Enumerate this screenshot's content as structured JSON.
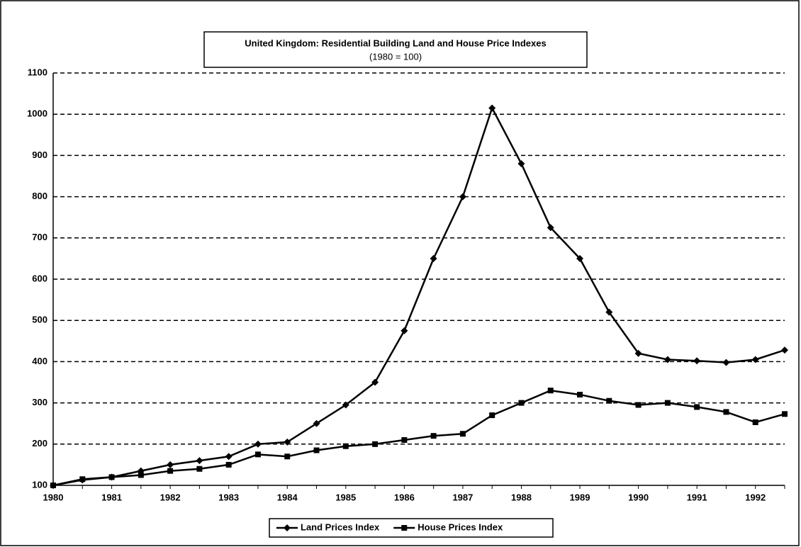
{
  "chart_data": {
    "type": "line",
    "title": "United Kingdom: Residential Building Land and House Price Indexes",
    "subtitle": "(1980 = 100)",
    "categories": [
      "1980",
      null,
      "1981",
      null,
      "1982",
      null,
      "1983",
      null,
      "1984",
      null,
      "1985",
      null,
      "1986",
      null,
      "1987",
      null,
      "1988",
      null,
      "1989",
      null,
      "1990",
      null,
      "1991",
      null,
      "1992",
      null
    ],
    "series": [
      {
        "name": "Land Prices Index",
        "color": "#000000",
        "marker": "diamond",
        "values": [
          100,
          113,
          120,
          135,
          150,
          160,
          170,
          200,
          205,
          250,
          295,
          350,
          475,
          650,
          800,
          1015,
          880,
          725,
          650,
          520,
          420,
          405,
          402,
          398,
          405,
          428
        ]
      },
      {
        "name": "House Prices Index",
        "color": "#000000",
        "marker": "square",
        "values": [
          100,
          115,
          120,
          125,
          135,
          140,
          150,
          175,
          170,
          185,
          195,
          200,
          210,
          220,
          225,
          270,
          300,
          330,
          320,
          305,
          295,
          300,
          290,
          278,
          253,
          273
        ]
      }
    ],
    "ylim": [
      100,
      1100
    ],
    "yticks": [
      100,
      200,
      300,
      400,
      500,
      600,
      700,
      800,
      900,
      1000,
      1100
    ],
    "grid": true,
    "legend": "bottom"
  }
}
